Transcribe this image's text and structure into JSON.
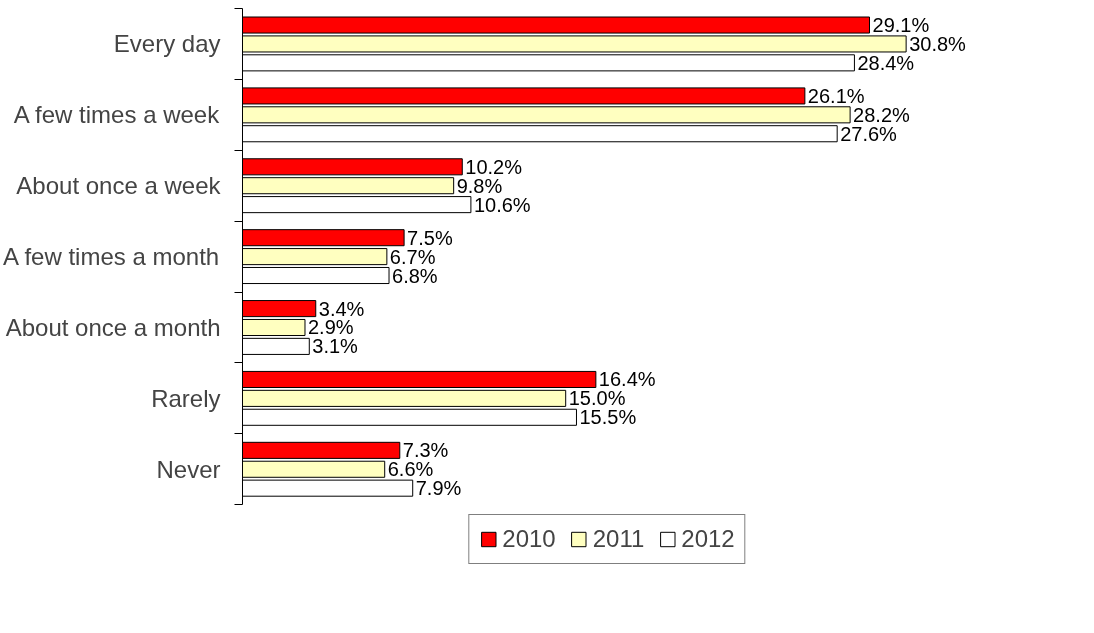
{
  "chart_data": {
    "type": "bar",
    "orientation": "horizontal",
    "categories": [
      "Every day",
      "A few times a week",
      "About once a week",
      "A few times a month",
      "About once a month",
      "Rarely",
      "Never"
    ],
    "series": [
      {
        "name": "2010",
        "color": "#ff0000",
        "values": [
          29.1,
          26.1,
          10.2,
          7.5,
          3.4,
          16.4,
          7.3
        ],
        "value_labels": [
          "29.1%",
          "26.1%",
          "10.2%",
          "7.5%",
          "3.4%",
          "16.4%",
          "7.3%"
        ]
      },
      {
        "name": "2011",
        "color": "#ffffc0",
        "values": [
          30.8,
          28.2,
          9.8,
          6.7,
          2.9,
          15.0,
          6.6
        ],
        "value_labels": [
          "30.8%",
          "28.2%",
          "9.8%",
          "6.7%",
          "2.9%",
          "15.0%",
          "6.6%"
        ]
      },
      {
        "name": "2012",
        "color": "#ffffff",
        "values": [
          28.4,
          27.6,
          10.6,
          6.8,
          3.1,
          15.5,
          7.9
        ],
        "value_labels": [
          "28.4%",
          "27.6%",
          "10.6%",
          "6.8%",
          "3.1%",
          "15.5%",
          "7.9%"
        ]
      }
    ],
    "legend": "bottom",
    "grid": false
  }
}
